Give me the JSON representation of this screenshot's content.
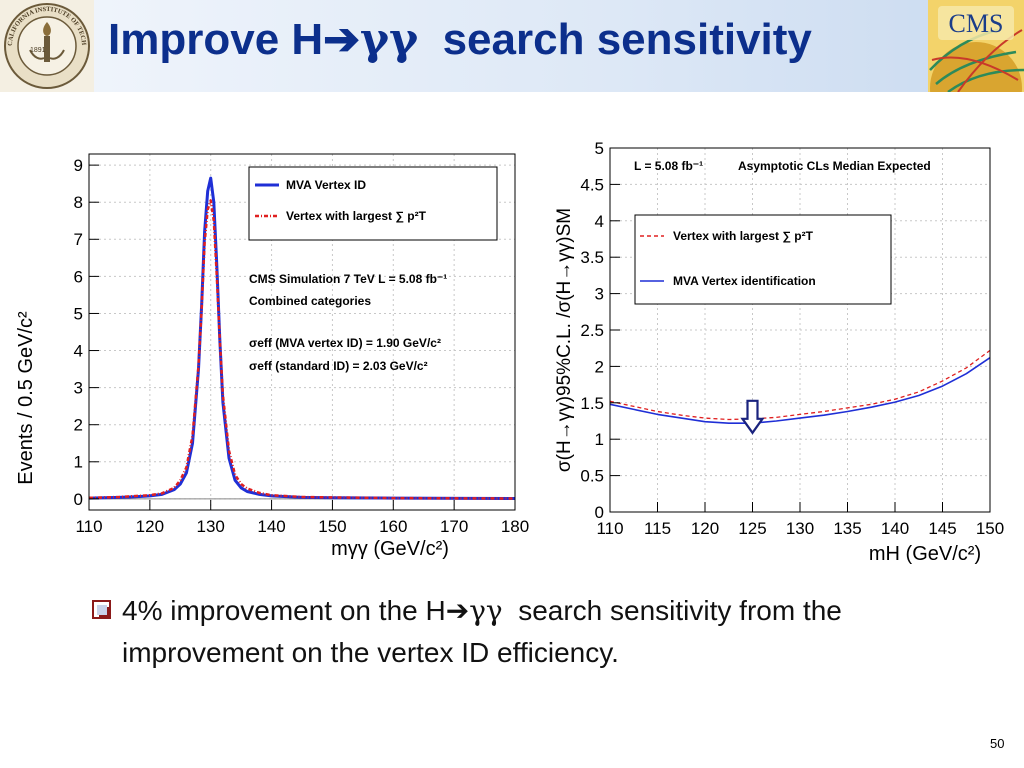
{
  "slide": {
    "title_pre": "Improve H",
    "title_arrow": "➔",
    "title_gamma": "γγ",
    "title_post": "  search sensitivity",
    "page_number": "50"
  },
  "logos": {
    "left": {
      "name": "caltech-seal",
      "text": "CALIFORNIA INSTITUTE OF TECHNOLOGY",
      "year": "1891"
    },
    "right": {
      "name": "cms-logo",
      "text": "CMS"
    }
  },
  "bullet": {
    "pre": "4% improvement on the H",
    "arrow": "➔",
    "gamma": "γγ",
    "post": "  search sensitivity from the improvement on the vertex ID efficiency."
  },
  "chart_data": [
    {
      "type": "line",
      "xlabel": "mγγ (GeV/c²)",
      "ylabel": "Events / 0.5 GeV/c²",
      "xlim": [
        110,
        180
      ],
      "ylim": [
        -0.3,
        9.3
      ],
      "xticks": [
        "110",
        "120",
        "130",
        "140",
        "150",
        "160",
        "170",
        "180"
      ],
      "yticks": [
        "0",
        "1",
        "2",
        "3",
        "4",
        "5",
        "6",
        "7",
        "8",
        "9"
      ],
      "grid": true,
      "legend_position": "top-right",
      "series": [
        {
          "name": "MVA Vertex ID",
          "color": "#1f2fd6",
          "style": "solid",
          "x": [
            110,
            115,
            118,
            120,
            122,
            124,
            125,
            126,
            127,
            128,
            128.5,
            129,
            129.5,
            130,
            130.5,
            131,
            131.5,
            132,
            133,
            134,
            135,
            136,
            138,
            140,
            145,
            150,
            160,
            180
          ],
          "y": [
            0.02,
            0.04,
            0.06,
            0.08,
            0.12,
            0.25,
            0.4,
            0.7,
            1.5,
            3.5,
            5.2,
            7.2,
            8.3,
            8.65,
            8.0,
            6.3,
            4.3,
            2.6,
            1.1,
            0.5,
            0.3,
            0.2,
            0.12,
            0.08,
            0.04,
            0.03,
            0.02,
            0.01
          ]
        },
        {
          "name": "Vertex with largest ∑ p²T",
          "color": "#e02020",
          "style": "dashdot",
          "x": [
            110,
            115,
            118,
            120,
            122,
            124,
            125,
            126,
            127,
            128,
            128.5,
            129,
            129.5,
            130,
            130.5,
            131,
            131.5,
            132,
            133,
            134,
            135,
            136,
            138,
            140,
            145,
            150,
            160,
            180
          ],
          "y": [
            0.03,
            0.05,
            0.08,
            0.1,
            0.15,
            0.3,
            0.5,
            0.85,
            1.7,
            3.6,
            5.1,
            6.9,
            7.8,
            8.05,
            7.5,
            6.0,
            4.3,
            2.8,
            1.3,
            0.65,
            0.4,
            0.28,
            0.16,
            0.1,
            0.05,
            0.04,
            0.02,
            0.01
          ]
        }
      ],
      "annotations": [
        "CMS Simulation 7 TeV L = 5.08 fb⁻¹",
        "Combined categories",
        "σeff (MVA vertex ID) = 1.90 GeV/c²",
        "σeff (standard ID) = 2.03 GeV/c²"
      ]
    },
    {
      "type": "line",
      "xlabel": "mH (GeV/c²)",
      "ylabel": "σ(H→γγ)95%C.L. /σ(H→γγ)SM",
      "xlim": [
        110,
        150
      ],
      "ylim": [
        0,
        5
      ],
      "xticks": [
        "110",
        "115",
        "120",
        "125",
        "130",
        "135",
        "140",
        "145",
        "150"
      ],
      "yticks": [
        "0",
        "0.5",
        "1",
        "1.5",
        "2",
        "2.5",
        "3",
        "3.5",
        "4",
        "4.5",
        "5"
      ],
      "grid": true,
      "legend_position": "top-right",
      "series": [
        {
          "name": "Vertex with largest ∑ p²T",
          "color": "#e02020",
          "style": "dashed",
          "x": [
            110,
            112.5,
            115,
            117.5,
            120,
            122.5,
            125,
            127.5,
            130,
            132.5,
            135,
            137.5,
            140,
            142.5,
            145,
            147.5,
            150
          ],
          "y": [
            1.52,
            1.45,
            1.38,
            1.33,
            1.29,
            1.27,
            1.28,
            1.3,
            1.34,
            1.38,
            1.43,
            1.48,
            1.55,
            1.65,
            1.8,
            1.98,
            2.22
          ]
        },
        {
          "name": "MVA Vertex identification",
          "color": "#1f2fd6",
          "style": "solid",
          "x": [
            110,
            112.5,
            115,
            117.5,
            120,
            122.5,
            125,
            127.5,
            130,
            132.5,
            135,
            137.5,
            140,
            142.5,
            145,
            147.5,
            150
          ],
          "y": [
            1.48,
            1.41,
            1.34,
            1.29,
            1.24,
            1.22,
            1.22,
            1.25,
            1.29,
            1.33,
            1.38,
            1.44,
            1.51,
            1.6,
            1.73,
            1.9,
            2.12
          ]
        }
      ],
      "annotations": [
        "L = 5.08 fb⁻¹",
        "Asymptotic CLs Median Expected"
      ],
      "arrow_marker": {
        "x": 125,
        "y": 1.5,
        "direction": "down"
      }
    }
  ]
}
